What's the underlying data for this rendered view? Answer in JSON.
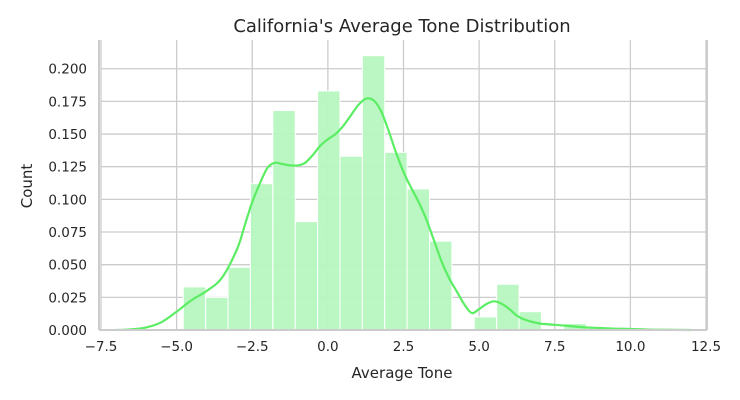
{
  "chart_data": {
    "type": "bar",
    "title": "California's Average Tone Distribution",
    "xlabel": "Average Tone",
    "ylabel": "Count",
    "xlim": [
      -7.5,
      12.5
    ],
    "ylim": [
      0,
      0.222
    ],
    "xticks": [
      -7.5,
      -5.0,
      -2.5,
      0.0,
      2.5,
      5.0,
      7.5,
      10.0,
      12.5
    ],
    "xtick_labels": [
      "−7.5",
      "−5.0",
      "−2.5",
      "0.0",
      "2.5",
      "5.0",
      "7.5",
      "10.0",
      "12.5"
    ],
    "yticks": [
      0.0,
      0.025,
      0.05,
      0.075,
      0.1,
      0.125,
      0.15,
      0.175,
      0.2
    ],
    "ytick_labels": [
      "0.000",
      "0.025",
      "0.050",
      "0.075",
      "0.100",
      "0.125",
      "0.150",
      "0.175",
      "0.200"
    ],
    "grid": true,
    "colors": {
      "bars": "#b6f7bf",
      "bar_edge": "#ffffff",
      "kde": "#5bed63",
      "grid": "#cccccc"
    },
    "bin_width": 0.74,
    "bins": [
      {
        "x0": -4.78,
        "value": 0.033
      },
      {
        "x0": -4.04,
        "value": 0.025
      },
      {
        "x0": -3.3,
        "value": 0.048
      },
      {
        "x0": -2.56,
        "value": 0.112
      },
      {
        "x0": -1.82,
        "value": 0.168
      },
      {
        "x0": -1.08,
        "value": 0.083
      },
      {
        "x0": -0.34,
        "value": 0.183
      },
      {
        "x0": 0.4,
        "value": 0.133
      },
      {
        "x0": 1.14,
        "value": 0.21
      },
      {
        "x0": 1.88,
        "value": 0.136
      },
      {
        "x0": 2.62,
        "value": 0.108
      },
      {
        "x0": 3.36,
        "value": 0.068
      },
      {
        "x0": 4.1,
        "value": 0.0
      },
      {
        "x0": 4.84,
        "value": 0.01
      },
      {
        "x0": 5.58,
        "value": 0.035
      },
      {
        "x0": 6.32,
        "value": 0.014
      },
      {
        "x0": 7.06,
        "value": 0.0
      },
      {
        "x0": 7.8,
        "value": 0.005
      }
    ],
    "kde": {
      "x": [
        -7.0,
        -6.5,
        -6.0,
        -5.5,
        -5.0,
        -4.5,
        -4.0,
        -3.5,
        -3.0,
        -2.75,
        -2.5,
        -2.25,
        -2.0,
        -1.75,
        -1.5,
        -1.25,
        -1.0,
        -0.75,
        -0.5,
        -0.25,
        0.0,
        0.25,
        0.5,
        0.75,
        1.0,
        1.25,
        1.5,
        1.75,
        2.0,
        2.25,
        2.5,
        2.75,
        3.0,
        3.25,
        3.5,
        3.75,
        4.0,
        4.25,
        4.5,
        4.75,
        5.0,
        5.25,
        5.5,
        5.75,
        6.0,
        6.25,
        6.5,
        7.0,
        7.5,
        8.0,
        8.5,
        9.0,
        9.5,
        10.0,
        10.5,
        11.0,
        12.0
      ],
      "y": [
        0.0,
        0.0005,
        0.002,
        0.006,
        0.014,
        0.023,
        0.03,
        0.04,
        0.062,
        0.08,
        0.098,
        0.112,
        0.124,
        0.128,
        0.127,
        0.126,
        0.126,
        0.128,
        0.134,
        0.141,
        0.146,
        0.15,
        0.156,
        0.164,
        0.172,
        0.177,
        0.176,
        0.168,
        0.153,
        0.136,
        0.121,
        0.109,
        0.098,
        0.085,
        0.069,
        0.053,
        0.04,
        0.03,
        0.02,
        0.013,
        0.016,
        0.02,
        0.022,
        0.02,
        0.016,
        0.011,
        0.008,
        0.005,
        0.004,
        0.003,
        0.002,
        0.0015,
        0.001,
        0.0008,
        0.0004,
        0.0002,
        0.0
      ]
    }
  }
}
